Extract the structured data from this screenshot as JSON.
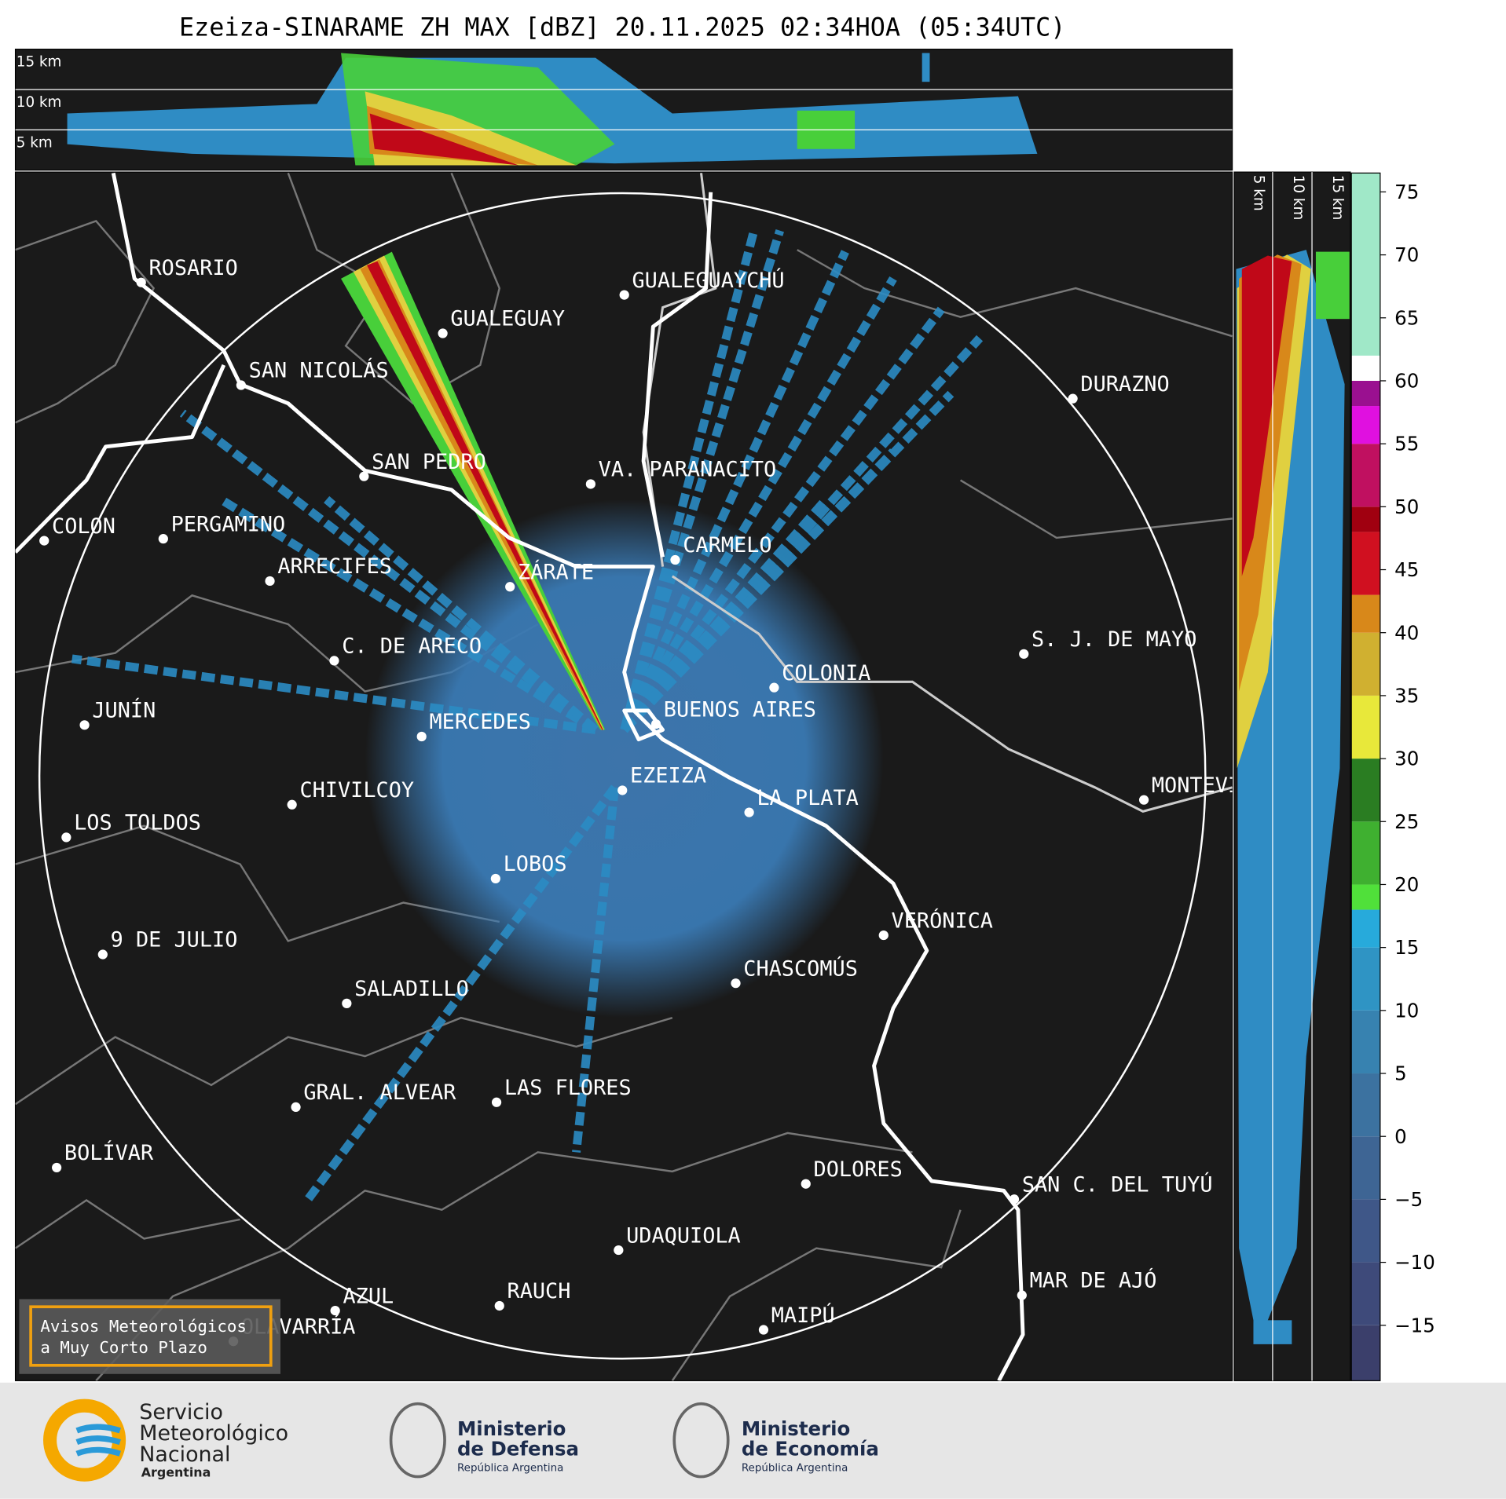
{
  "title": "Ezeiza-SINARAME ZH MAX [dBZ] 20.11.2025 02:34HOA (05:34UTC)",
  "cross_section_top": {
    "labels": [
      "15 km",
      "10 km",
      "5 km"
    ]
  },
  "cross_section_right": {
    "labels": [
      "5 km",
      "10 km",
      "15 km"
    ]
  },
  "colorbar": {
    "lim": [
      -19.4,
      76.5
    ],
    "ticks": [
      75,
      70,
      65,
      60,
      55,
      50,
      45,
      40,
      35,
      30,
      25,
      20,
      15,
      10,
      5,
      0,
      {
        "value": -5,
        "label": "−5"
      },
      {
        "value": -10,
        "label": "−10"
      },
      {
        "value": -15,
        "label": "−15"
      }
    ],
    "bounds": [
      -20,
      -15,
      -10,
      -5,
      0,
      5,
      10,
      15,
      18,
      20,
      25,
      30,
      35,
      40,
      43,
      48,
      50,
      55,
      58,
      60,
      62,
      77
    ],
    "colors": [
      "#3b3f6b",
      "#3e4a7a",
      "#3f5788",
      "#3e6594",
      "#3c72a0",
      "#3782b0",
      "#2f94c4",
      "#27aadb",
      "#50e03a",
      "#3fb030",
      "#2a7d22",
      "#e8e83a",
      "#d0b030",
      "#d8881a",
      "#d01020",
      "#a00010",
      "#c01060",
      "#e010e0",
      "#9a1090",
      "#ffffff",
      "#a0e8c8"
    ]
  },
  "cities": [
    "ROSARIO",
    "GUALEGUAYCHÚ",
    "GUALEGUAY",
    "SAN NICOLÁS",
    "DURAZNO",
    "SAN PEDRO",
    "VA. PARANACITO",
    "COLON",
    "PERGAMINO",
    "CARMELO",
    "ARRECIFES",
    "ZÁRATE",
    "S. J. DE MAYO",
    "C. DE ARECO",
    "COLONIA",
    "BUENOS AIRES",
    "JUNÍN",
    "MERCEDES",
    "MONTEVIDEO",
    "EZEIZA",
    "CHIVILCOY",
    "LA PLATA",
    "LOS TOLDOS",
    "LOBOS",
    "VERÓNICA",
    "9 DE JULIO",
    "CHASCOMÚS",
    "SALADILLO",
    "GRAL. ALVEAR",
    "LAS FLORES",
    "BOLÍVAR",
    "DOLORES",
    "SAN C. DEL TUYÚ",
    "UDAQUIOLA",
    "RAUCH",
    "MAR DE AJÓ",
    "AZUL",
    "MAIPÚ",
    "OLAVARRÍA"
  ],
  "warning_box": {
    "lines": [
      "Avisos Meteorológicos",
      "a Muy Corto Plazo"
    ]
  },
  "logos": [
    {
      "lines": [
        "Servicio",
        "Meteorológico",
        "Nacional"
      ],
      "sub": "Argentina"
    },
    {
      "lines": [
        "Ministerio",
        "de Defensa"
      ],
      "sub": "República Argentina"
    },
    {
      "lines": [
        "Ministerio",
        "de Economía"
      ],
      "sub": "República Argentina"
    }
  ]
}
